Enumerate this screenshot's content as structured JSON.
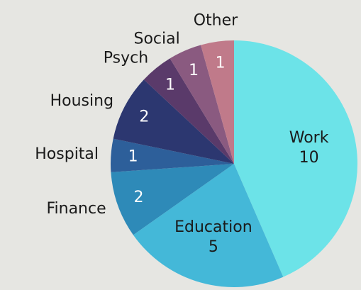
{
  "chart_data": {
    "type": "pie",
    "categories": [
      "Work",
      "Education",
      "Finance",
      "Hospital",
      "Housing",
      "Psych",
      "Social",
      "Other"
    ],
    "values": [
      10,
      5,
      2,
      1,
      2,
      1,
      1,
      1
    ],
    "colors": [
      "#6ce3e8",
      "#44b8d8",
      "#2e8ab8",
      "#2d5f9a",
      "#2c3770",
      "#5a3a6a",
      "#8a5a80",
      "#c07a8a"
    ]
  }
}
